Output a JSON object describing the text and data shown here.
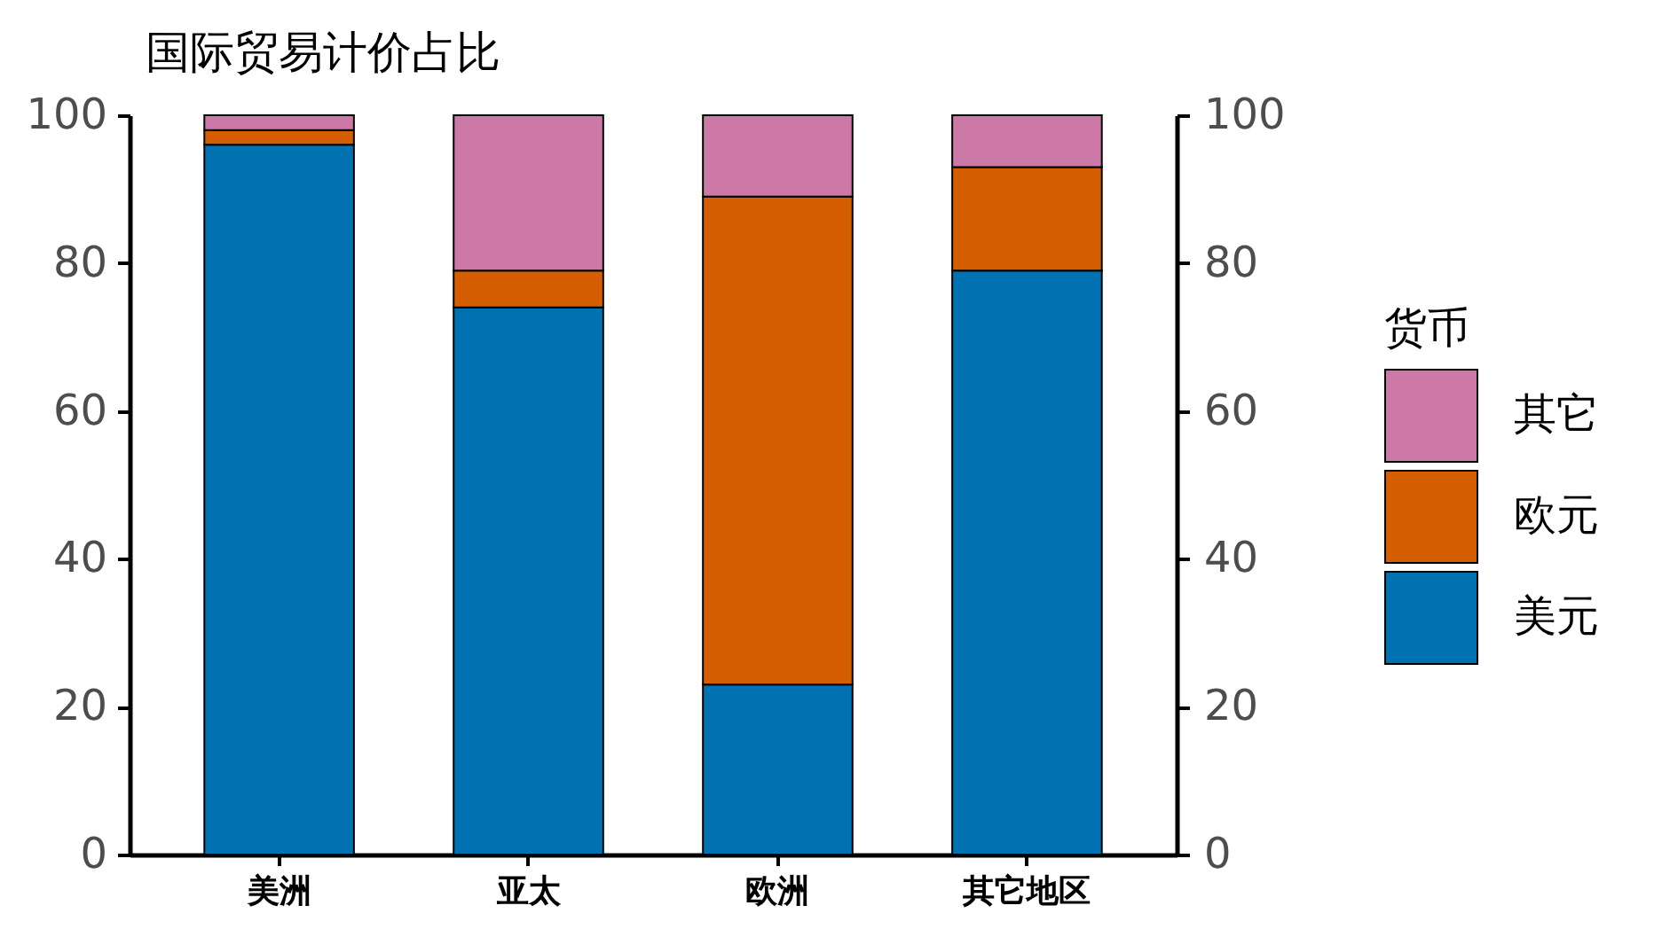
{
  "chart_data": {
    "type": "bar",
    "title": "国际贸易计价占比",
    "legend_title": "货币",
    "categories": [
      "美洲",
      "亚太",
      "欧洲",
      "其它地区"
    ],
    "series": [
      {
        "name": "美元",
        "color": "#0072b2",
        "values": [
          96,
          74,
          23,
          79
        ]
      },
      {
        "name": "欧元",
        "color": "#d55e00",
        "values": [
          2,
          5,
          66,
          14
        ]
      },
      {
        "name": "其它",
        "color": "#cc79a7",
        "values": [
          2,
          21,
          11,
          7
        ]
      }
    ],
    "stacked": true,
    "ylim": [
      0,
      100
    ],
    "yticks": [
      0,
      20,
      40,
      60,
      80,
      100
    ],
    "y2lim": [
      0,
      100
    ],
    "y2ticks": [
      0,
      20,
      40,
      60,
      80,
      100
    ],
    "grid": false,
    "legend": "right"
  }
}
